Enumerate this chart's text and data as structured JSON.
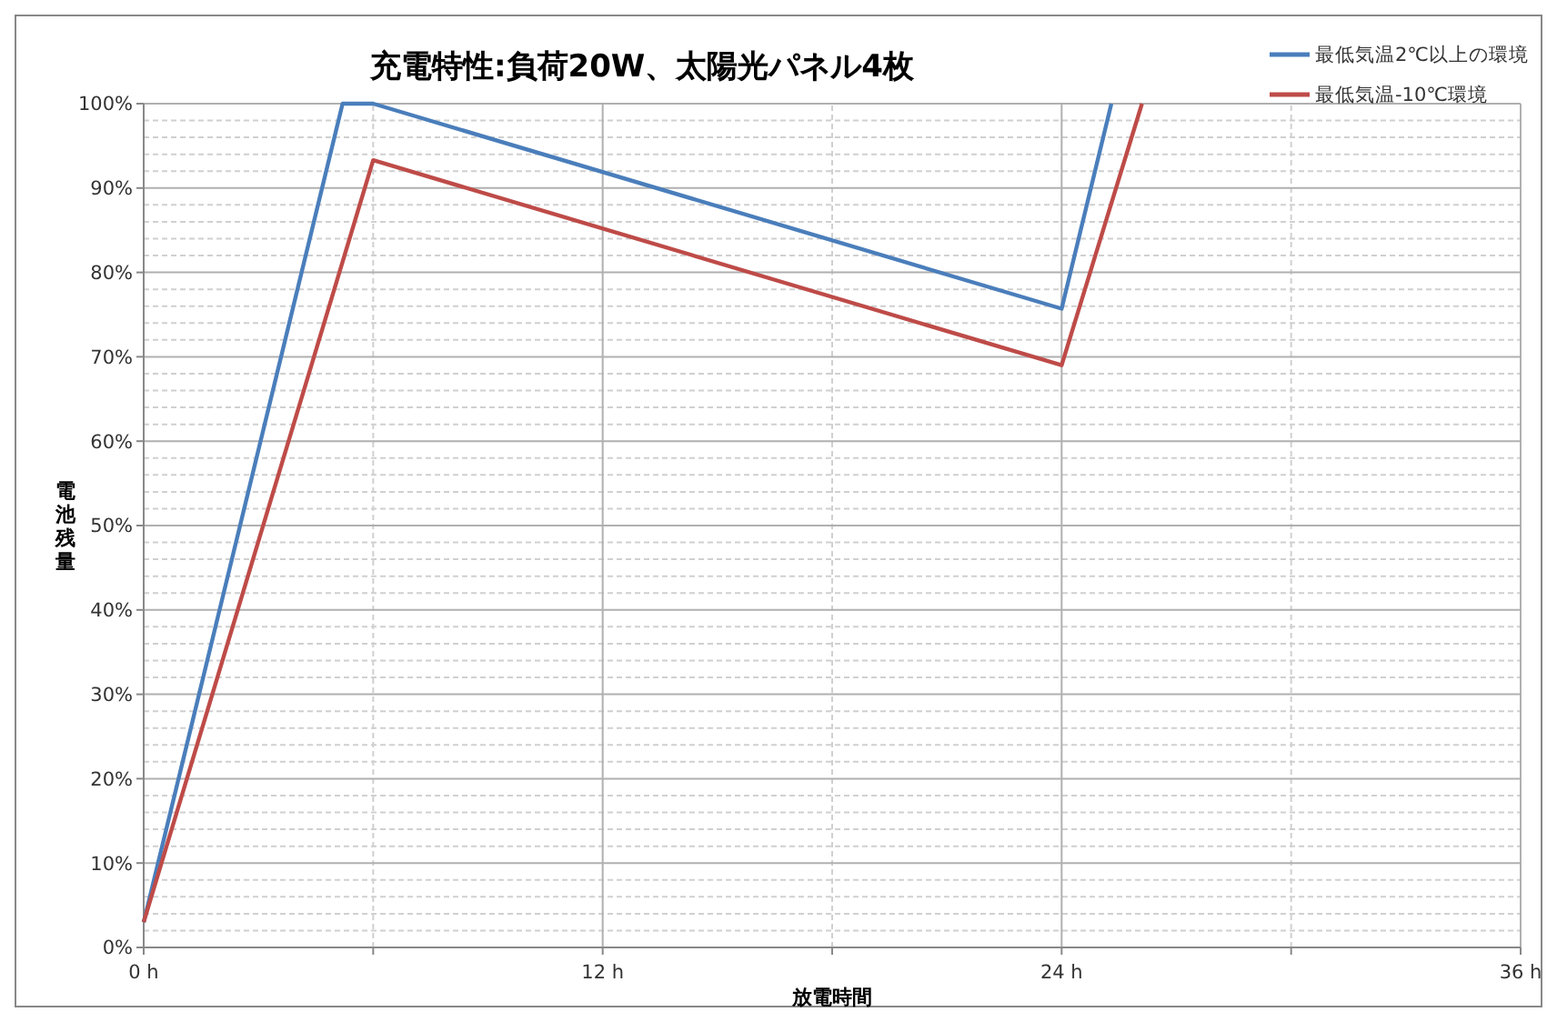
{
  "chart_data": {
    "type": "line",
    "title": "充電特性:負荷20W、太陽光パネル4枚",
    "xlabel": "放電時間",
    "ylabel": "電池残量",
    "series": [
      {
        "name": "最低気温2℃以上の環境",
        "color": "#4a7ebb",
        "x": [
          0,
          5.2,
          6,
          24,
          25.3
        ],
        "values": [
          3,
          100,
          100,
          75.7,
          100
        ]
      },
      {
        "name": "最低気温-10℃環境",
        "color": "#be4b48",
        "x": [
          0,
          6,
          24,
          26.1
        ],
        "values": [
          3,
          93.3,
          69,
          100
        ]
      }
    ],
    "xlim": [
      0,
      36
    ],
    "xticks": [
      {
        "value": 0,
        "label": "0 h"
      },
      {
        "value": 6,
        "label": null
      },
      {
        "value": 12,
        "label": "12 h"
      },
      {
        "value": 18,
        "label": null
      },
      {
        "value": 24,
        "label": "24 h"
      },
      {
        "value": 30,
        "label": null
      },
      {
        "value": 36,
        "label": "36 h"
      }
    ],
    "ylim": [
      0,
      100
    ],
    "yticks": [
      {
        "value": 0,
        "label": "0%"
      },
      {
        "value": 10,
        "label": "10%"
      },
      {
        "value": 20,
        "label": "20%"
      },
      {
        "value": 30,
        "label": "30%"
      },
      {
        "value": 40,
        "label": "40%"
      },
      {
        "value": 50,
        "label": "50%"
      },
      {
        "value": 60,
        "label": "60%"
      },
      {
        "value": 70,
        "label": "70%"
      },
      {
        "value": 80,
        "label": "80%"
      },
      {
        "value": 90,
        "label": "90%"
      },
      {
        "value": 100,
        "label": "100%"
      }
    ],
    "grid": true,
    "legend": "top right",
    "line_style": "solid",
    "marker": "none"
  }
}
